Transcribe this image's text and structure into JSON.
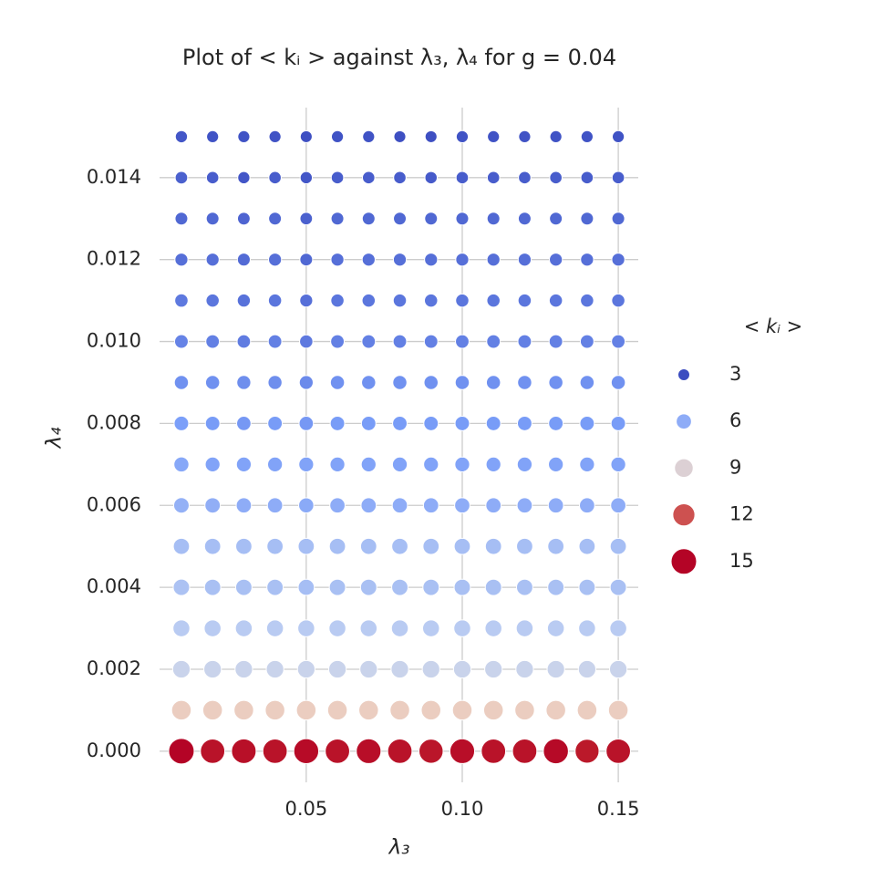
{
  "chart_data": {
    "type": "scatter",
    "title": "Plot of < kᵢ > against λ₃, λ₄ for g = 0.04",
    "x_label": "λ₃",
    "y_label": "λ₄",
    "legend_title": "< kᵢ >",
    "x": [
      0.01,
      0.02,
      0.03,
      0.04,
      0.05,
      0.06,
      0.07,
      0.08,
      0.09,
      0.1,
      0.11,
      0.12,
      0.13,
      0.14,
      0.15
    ],
    "y": [
      0,
      0.001,
      0.002,
      0.003,
      0.004,
      0.005,
      0.006,
      0.007,
      0.008,
      0.009,
      0.01,
      0.011,
      0.012,
      0.013,
      0.014,
      0.015
    ],
    "values": [
      [
        15,
        14,
        14.2,
        14,
        14.5,
        14,
        14.3,
        14,
        13.8,
        14.3,
        14,
        14,
        14.6,
        13.6,
        14
      ],
      [
        9.8,
        9.8,
        9.8,
        9.8,
        9.8,
        9.8,
        9.8,
        9.8,
        9.8,
        9.8,
        9.8,
        9.8,
        9.8,
        9.8,
        9.8
      ],
      [
        8,
        8,
        8,
        8,
        8,
        8,
        8,
        8,
        8,
        8,
        8,
        8,
        8,
        8,
        8
      ],
      [
        7.4,
        7.4,
        7.4,
        7.4,
        7.4,
        7.4,
        7.4,
        7.4,
        7.4,
        7.4,
        7.4,
        7.4,
        7.4,
        7.4,
        7.4
      ],
      [
        7,
        6.9,
        6.9,
        6.9,
        6.8,
        6.9,
        6.9,
        6.9,
        6.9,
        6.9,
        6.9,
        6.9,
        6.9,
        6.9,
        6.9
      ],
      [
        6.8,
        6.8,
        6.8,
        6.8,
        6.8,
        6.8,
        6.8,
        6.8,
        6.8,
        6.8,
        6.8,
        6.8,
        6.8,
        6.8,
        6.8
      ],
      [
        6.2,
        6.1,
        6,
        6,
        5.9,
        6,
        6,
        6,
        6,
        6,
        6,
        6,
        6,
        6,
        6
      ],
      [
        5.8,
        5.6,
        5.6,
        5.6,
        5.6,
        5.6,
        5.6,
        5.6,
        5.6,
        5.6,
        5.6,
        5.6,
        5.6,
        5.6,
        5.6
      ],
      [
        5.4,
        5.3,
        5.2,
        5.3,
        5.2,
        5.3,
        5.3,
        5.3,
        5.3,
        5.3,
        5.3,
        5.3,
        5.3,
        5.3,
        5.3
      ],
      [
        5,
        5,
        4.9,
        4.9,
        4.8,
        5,
        5,
        5,
        5,
        5,
        5,
        5,
        5,
        5,
        5
      ],
      [
        4.6,
        4.5,
        4.4,
        4.5,
        4.3,
        4.5,
        4.5,
        4.5,
        4.5,
        4.5,
        4.5,
        4.5,
        4.5,
        4.5,
        4.5
      ],
      [
        4.3,
        4.2,
        4.1,
        4.2,
        4,
        4.2,
        4.2,
        4.2,
        4.2,
        4.2,
        4.2,
        4.2,
        4.2,
        4.2,
        4.2
      ],
      [
        4,
        4,
        3.9,
        4,
        3.8,
        4,
        4,
        4,
        4,
        4,
        4,
        4,
        4,
        4,
        4
      ],
      [
        3.8,
        3.8,
        3.7,
        3.8,
        3.6,
        3.8,
        3.8,
        3.8,
        3.8,
        3.8,
        3.8,
        3.8,
        3.8,
        3.8,
        3.8
      ],
      [
        3.6,
        3.5,
        3.3,
        3.5,
        3.3,
        3.5,
        3.5,
        3.5,
        3.4,
        3.5,
        3.5,
        3.5,
        3.5,
        3.5,
        3.5
      ],
      [
        3.3,
        3.2,
        3.2,
        3.2,
        3.1,
        3.2,
        3.2,
        3.1,
        3.1,
        3.2,
        3.2,
        3.2,
        3.2,
        3.2,
        3.2
      ]
    ],
    "xlim": [
      0.003,
      0.1564
    ],
    "ylim": [
      -0.00076,
      0.01571
    ],
    "xticks": [
      0.05,
      {
        "value": 0.1,
        "label": "0.10"
      },
      0.15
    ],
    "yticks": [
      {
        "value": 0,
        "label": "0.000"
      },
      0.002,
      0.004,
      0.006,
      0.008,
      {
        "value": 0.01,
        "label": "0.010"
      },
      0.012,
      0.014
    ],
    "grid": true,
    "legend": "right",
    "legend_values": [
      3,
      6,
      9,
      12,
      15
    ],
    "clim": [
      3,
      15
    ],
    "colormap": [
      "#3b4cc0",
      "#7b9ff9",
      "#c5d4f0",
      "#f2cbb7",
      "#c0282d",
      "#b40426"
    ]
  }
}
